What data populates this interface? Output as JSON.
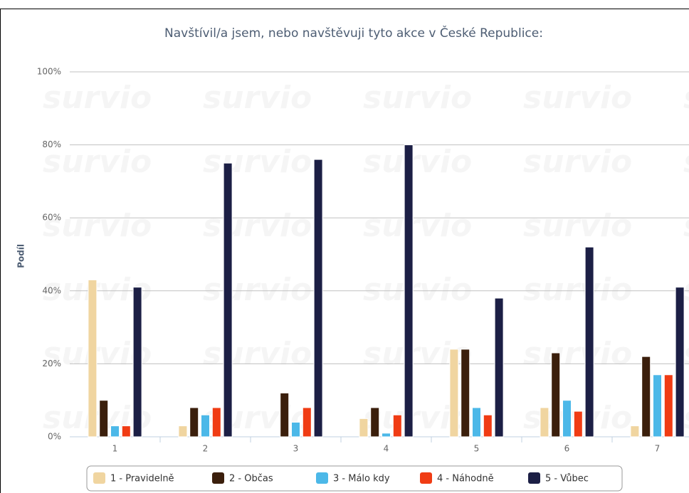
{
  "chart_data": {
    "type": "bar",
    "title": "Navštívil/a jsem, nebo navštěvuji tyto akce v České Republice:",
    "y_label": "Podíl",
    "watermark": "survio",
    "categories": [
      "1",
      "2",
      "3",
      "4",
      "5",
      "6",
      "7"
    ],
    "series": [
      {
        "name": "1 - Pravidelně",
        "color": "#f0d5a0",
        "values": [
          43,
          3,
          0,
          5,
          24,
          8,
          3
        ]
      },
      {
        "name": "2 - Občas",
        "color": "#3b1f0c",
        "values": [
          10,
          8,
          12,
          8,
          24,
          23,
          22
        ]
      },
      {
        "name": "3 - Málo kdy",
        "color": "#4cb8e8",
        "values": [
          3,
          6,
          4,
          1,
          8,
          10,
          17
        ]
      },
      {
        "name": "4 - Náhodně",
        "color": "#f03c14",
        "values": [
          3,
          8,
          8,
          6,
          6,
          7,
          17
        ]
      },
      {
        "name": "5 - Vůbec",
        "color": "#1c1f45",
        "values": [
          41,
          75,
          76,
          80,
          38,
          52,
          41
        ]
      }
    ],
    "ylim": [
      0,
      100
    ],
    "yticks": [
      {
        "value": 0,
        "label": "0%"
      },
      {
        "value": 20,
        "label": "20%"
      },
      {
        "value": 40,
        "label": "40%"
      },
      {
        "value": 60,
        "label": "60%"
      },
      {
        "value": 80,
        "label": "80%"
      },
      {
        "value": 100,
        "label": "100%"
      }
    ],
    "grid": true,
    "legend": "bottom"
  }
}
